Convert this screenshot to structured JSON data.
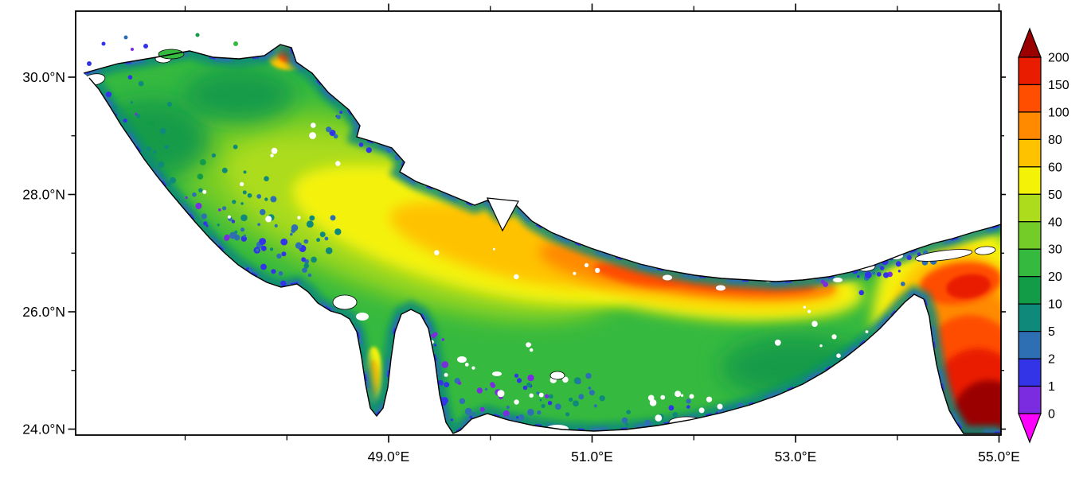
{
  "figure": {
    "kind": "filled-contour geographic heatmap",
    "region_shown": "Persian Gulf and Strait of Hormuz",
    "background": "#ffffff"
  },
  "chart_data": {
    "type": "heatmap",
    "title": "",
    "xlabel": "",
    "ylabel": "",
    "x_axis": {
      "tick_labels": [
        "49.0°E",
        "51.0°E",
        "53.0°E",
        "55.0°E"
      ],
      "range_estimate": [
        "46.0°E",
        "55.1°E"
      ]
    },
    "y_axis": {
      "tick_labels": [
        "30.0°N",
        "28.0°N",
        "26.0°N",
        "24.0°N"
      ],
      "range_estimate": [
        "23.9°N",
        "31.1°N"
      ]
    },
    "grid": false,
    "legend_position": "colorbar-right",
    "colorbar": {
      "tick_labels": [
        "200",
        "150",
        "100",
        "80",
        "60",
        "50",
        "40",
        "30",
        "20",
        "10",
        "5",
        "2",
        "1",
        "0"
      ],
      "colors_top_to_bottom": [
        "#9B0000",
        "#E91C00",
        "#FF4E00",
        "#FF8A00",
        "#FFC200",
        "#F4F207",
        "#ACDC1C",
        "#74CC28",
        "#36B93F",
        "#139C48",
        "#0F8A7A",
        "#2E6FB4",
        "#3333E8",
        "#7B2CE0",
        "#FF00FF"
      ],
      "has_over_arrow": true,
      "has_under_arrow": true
    },
    "estimated_region_values": [
      {
        "region": "northwestern basin interior",
        "value_range": [
          10,
          40
        ]
      },
      {
        "region": "central axial band of the gulf",
        "value_range": [
          50,
          100
        ]
      },
      {
        "region": "southern and western coastal fringe",
        "value_range": [
          0,
          10
        ]
      },
      {
        "region": "band along northeastern side toward Strait of Hormuz",
        "value_range": [
          80,
          150
        ]
      },
      {
        "region": "southeastern corner beyond the strait",
        "value_range": [
          150,
          200
        ]
      },
      {
        "region": "small bay west of central peninsula",
        "value_range": [
          50,
          80
        ]
      }
    ]
  },
  "axes": {
    "lat": [
      {
        "deg": 30,
        "label": "30.0°N"
      },
      {
        "deg": 28,
        "label": "28.0°N"
      },
      {
        "deg": 26,
        "label": "26.0°N"
      },
      {
        "deg": 24,
        "label": "24.0°N"
      }
    ],
    "lat_minor": [
      29,
      27,
      25
    ],
    "lon": [
      {
        "deg": 49,
        "label": "49.0°E"
      },
      {
        "deg": 51,
        "label": "51.0°E"
      },
      {
        "deg": 53,
        "label": "53.0°E"
      },
      {
        "deg": 55,
        "label": "55.0°E"
      }
    ],
    "lon_minor": [
      47,
      48,
      50,
      52,
      54
    ]
  },
  "palette": {
    "under": "#FF00FF",
    "v0_1": "#7B2CE0",
    "v1_2": "#3333E8",
    "v2_5": "#2E6FB4",
    "v5_10": "#0F8A7A",
    "v10_20": "#139C48",
    "v20_30": "#36B93F",
    "v30_40": "#74CC28",
    "v40_50": "#ACDC1C",
    "v50_60": "#F4F207",
    "v60_80": "#FFC200",
    "v80_100": "#FF8A00",
    "v100_150": "#FF4E00",
    "v150_200": "#E91C00",
    "over": "#9B0000",
    "island": "#FFFFFF",
    "coast": "#000000"
  }
}
